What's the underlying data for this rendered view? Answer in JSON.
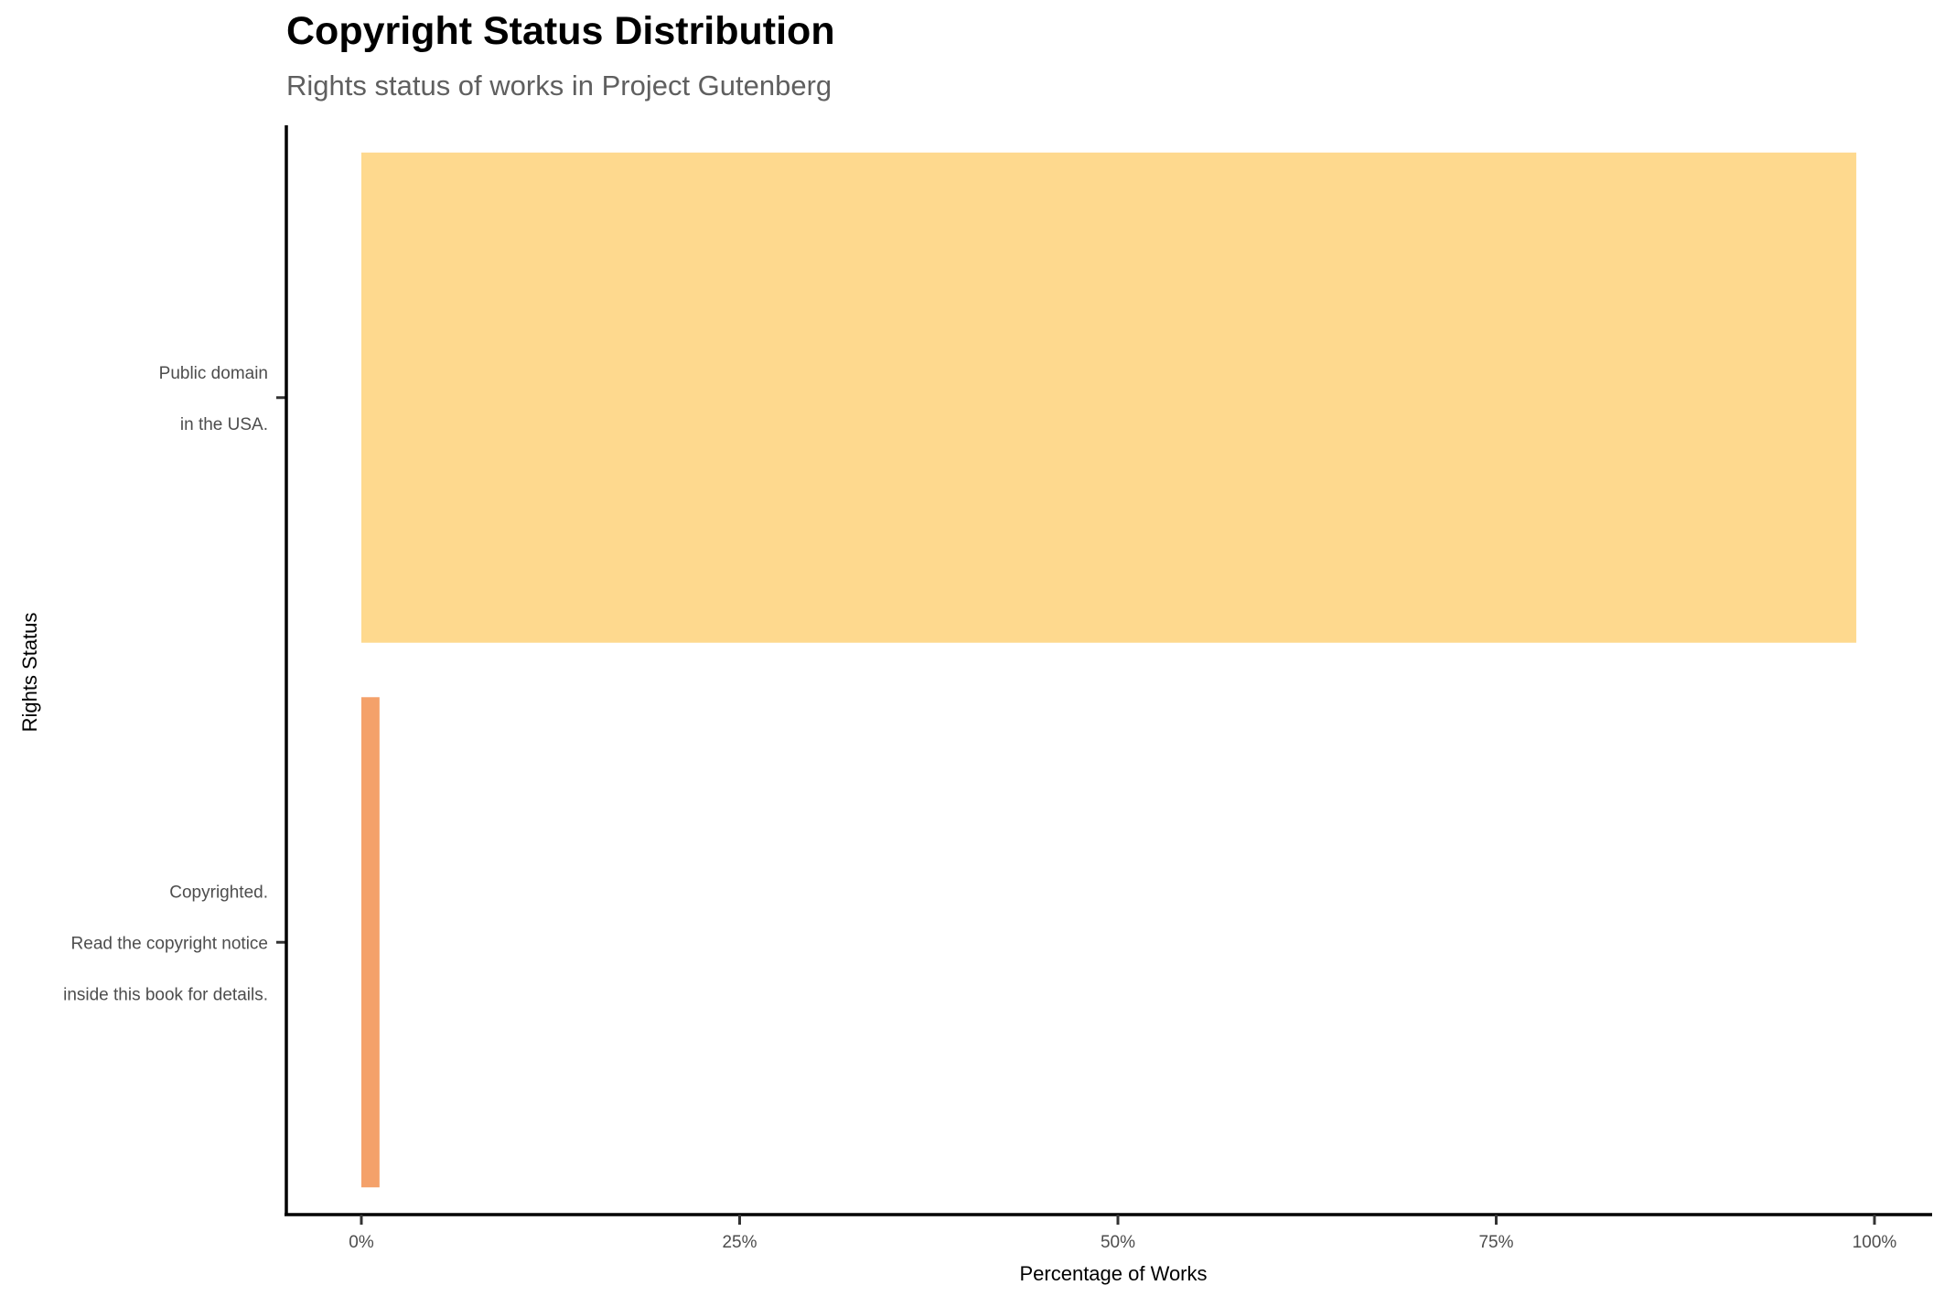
{
  "chart_data": {
    "type": "bar",
    "orientation": "horizontal",
    "title": "Copyright Status Distribution",
    "subtitle": "Rights status of works in Project Gutenberg",
    "xlabel": "Percentage of Works",
    "ylabel": "Rights Status",
    "xlim": [
      0,
      100
    ],
    "x_ticks": [
      0,
      25,
      50,
      75,
      100
    ],
    "x_tick_labels": [
      "0%",
      "25%",
      "50%",
      "75%",
      "100%"
    ],
    "grid": false,
    "legend": "none",
    "categories": [
      [
        "Public domain",
        "in the USA."
      ],
      [
        "Copyrighted.",
        "Read the copyright notice",
        "inside this book for details."
      ]
    ],
    "values": [
      98.8,
      1.2
    ],
    "colors": [
      "#FED98E",
      "#F4A16A"
    ]
  }
}
